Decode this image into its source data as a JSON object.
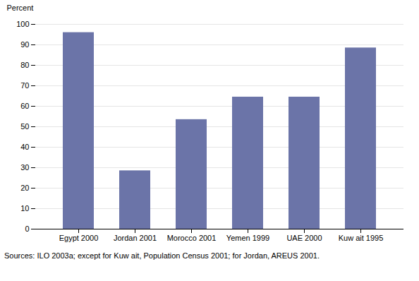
{
  "chart_data": {
    "type": "bar",
    "categories": [
      "Egypt 2000",
      "Jordan 2001",
      "Morocco 2001",
      "Yemen 1999",
      "UAE 2000",
      "Kuw ait 1995"
    ],
    "values": [
      96,
      28.5,
      53.5,
      64.5,
      64.5,
      88.5
    ],
    "color": "#6b74a8",
    "ylabel": "Percent",
    "ylim": [
      0,
      100
    ],
    "yticks": [
      0,
      10,
      20,
      30,
      40,
      50,
      60,
      70,
      80,
      90,
      100
    ],
    "grid": true,
    "annotations": [
      "Sources: ILO 2003a; except for Kuw ait, Population Census 2001; for Jordan, AREUS 2001."
    ]
  }
}
